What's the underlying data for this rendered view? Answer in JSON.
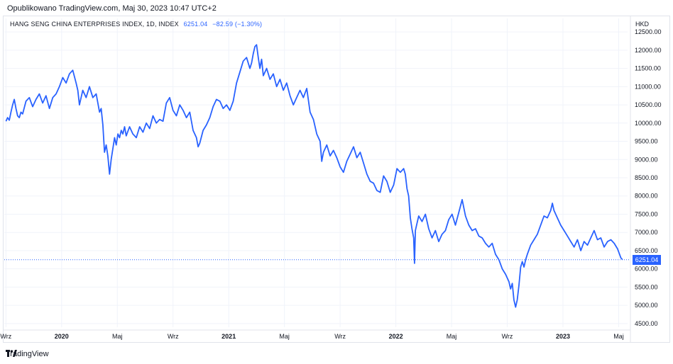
{
  "header": {
    "published": "Opublikowano TradingView.com, Maj 30, 2023 10:47 UTC+2"
  },
  "legend": {
    "symbol": "HANG SENG CHINA ENTERPRISES INDEX, 1D, INDEX",
    "last": "6251.04",
    "change": "−82.59 (−1.30%)"
  },
  "currency": "HKD",
  "price_tag": "6251.04",
  "footer": {
    "brand": "TradingView",
    "logo_icon": "tradingview-logo-icon"
  },
  "colors": {
    "line": "#2962ff",
    "grid": "#f0f3fa",
    "text": "#131722",
    "dotted": "#2962ff"
  },
  "chart_data": {
    "type": "line",
    "title": "",
    "y_ticks": [
      12500,
      12000,
      11500,
      11000,
      10500,
      10000,
      9500,
      9000,
      8500,
      8000,
      7500,
      7000,
      6500,
      6000,
      5500,
      5000,
      4500
    ],
    "y_tick_labels": [
      "12500.00",
      "12000.00",
      "11500.00",
      "11000.00",
      "10500.00",
      "10000.00",
      "9500.00",
      "9000.00",
      "8500.00",
      "8000.00",
      "7500.00",
      "7000.00",
      "6500.00",
      "6000.00",
      "5500.00",
      "5000.00",
      "4500.00"
    ],
    "ylim": [
      4400,
      12600
    ],
    "x_ticks": [
      {
        "label": "Wrz",
        "t": 0.0
      },
      {
        "label": "2020",
        "t": 0.3333
      },
      {
        "label": "Maj",
        "t": 0.6667
      },
      {
        "label": "Wrz",
        "t": 1.0
      },
      {
        "label": "2021",
        "t": 1.3333
      },
      {
        "label": "Maj",
        "t": 1.6667
      },
      {
        "label": "Wrz",
        "t": 2.0
      },
      {
        "label": "2022",
        "t": 2.3333
      },
      {
        "label": "Maj",
        "t": 2.6667
      },
      {
        "label": "Wrz",
        "t": 3.0
      },
      {
        "label": "2023",
        "t": 3.3333
      },
      {
        "label": "Maj",
        "t": 3.6667
      }
    ],
    "x_bold": [
      "2020",
      "2021",
      "2022",
      "2023"
    ],
    "xlim": [
      -0.01,
      3.72
    ],
    "last_value": 6251.04,
    "series": [
      {
        "points": [
          [
            0.0,
            10050
          ],
          [
            0.01,
            10150
          ],
          [
            0.02,
            10080
          ],
          [
            0.03,
            10300
          ],
          [
            0.04,
            10500
          ],
          [
            0.05,
            10650
          ],
          [
            0.06,
            10400
          ],
          [
            0.07,
            10200
          ],
          [
            0.08,
            10150
          ],
          [
            0.09,
            10300
          ],
          [
            0.1,
            10250
          ],
          [
            0.12,
            10600
          ],
          [
            0.14,
            10700
          ],
          [
            0.16,
            10450
          ],
          [
            0.18,
            10650
          ],
          [
            0.2,
            10800
          ],
          [
            0.22,
            10550
          ],
          [
            0.24,
            10750
          ],
          [
            0.26,
            10400
          ],
          [
            0.28,
            10700
          ],
          [
            0.3,
            10800
          ],
          [
            0.32,
            11000
          ],
          [
            0.34,
            11250
          ],
          [
            0.36,
            11100
          ],
          [
            0.38,
            11350
          ],
          [
            0.4,
            11450
          ],
          [
            0.42,
            11100
          ],
          [
            0.43,
            10900
          ],
          [
            0.44,
            10500
          ],
          [
            0.46,
            10900
          ],
          [
            0.48,
            10700
          ],
          [
            0.5,
            11000
          ],
          [
            0.52,
            10700
          ],
          [
            0.54,
            10800
          ],
          [
            0.56,
            10300
          ],
          [
            0.57,
            10400
          ],
          [
            0.58,
            9950
          ],
          [
            0.59,
            9200
          ],
          [
            0.6,
            9400
          ],
          [
            0.61,
            9100
          ],
          [
            0.62,
            8600
          ],
          [
            0.63,
            9000
          ],
          [
            0.64,
            9300
          ],
          [
            0.65,
            9600
          ],
          [
            0.66,
            9400
          ],
          [
            0.67,
            9700
          ],
          [
            0.68,
            9600
          ],
          [
            0.69,
            9800
          ],
          [
            0.7,
            9700
          ],
          [
            0.71,
            9900
          ],
          [
            0.72,
            9650
          ],
          [
            0.74,
            9900
          ],
          [
            0.76,
            9700
          ],
          [
            0.78,
            9600
          ],
          [
            0.8,
            9900
          ],
          [
            0.82,
            9750
          ],
          [
            0.84,
            10000
          ],
          [
            0.86,
            9850
          ],
          [
            0.88,
            10200
          ],
          [
            0.9,
            10000
          ],
          [
            0.92,
            10100
          ],
          [
            0.94,
            10050
          ],
          [
            0.96,
            10550
          ],
          [
            0.98,
            10700
          ],
          [
            1.0,
            10350
          ],
          [
            1.02,
            10200
          ],
          [
            1.04,
            10500
          ],
          [
            1.06,
            10350
          ],
          [
            1.08,
            10150
          ],
          [
            1.1,
            10300
          ],
          [
            1.12,
            9800
          ],
          [
            1.14,
            9600
          ],
          [
            1.15,
            9350
          ],
          [
            1.16,
            9450
          ],
          [
            1.18,
            9800
          ],
          [
            1.2,
            9950
          ],
          [
            1.22,
            10150
          ],
          [
            1.24,
            10450
          ],
          [
            1.26,
            10650
          ],
          [
            1.28,
            10600
          ],
          [
            1.3,
            10400
          ],
          [
            1.32,
            10500
          ],
          [
            1.34,
            10350
          ],
          [
            1.36,
            10600
          ],
          [
            1.38,
            11100
          ],
          [
            1.4,
            11400
          ],
          [
            1.42,
            11700
          ],
          [
            1.44,
            11800
          ],
          [
            1.46,
            11500
          ],
          [
            1.47,
            11650
          ],
          [
            1.48,
            11900
          ],
          [
            1.49,
            12100
          ],
          [
            1.5,
            12150
          ],
          [
            1.51,
            11800
          ],
          [
            1.52,
            11500
          ],
          [
            1.53,
            11750
          ],
          [
            1.54,
            11300
          ],
          [
            1.56,
            11500
          ],
          [
            1.58,
            11200
          ],
          [
            1.6,
            11350
          ],
          [
            1.62,
            11000
          ],
          [
            1.64,
            11200
          ],
          [
            1.66,
            10900
          ],
          [
            1.68,
            11100
          ],
          [
            1.7,
            10750
          ],
          [
            1.72,
            10500
          ],
          [
            1.74,
            10700
          ],
          [
            1.76,
            10900
          ],
          [
            1.78,
            10700
          ],
          [
            1.8,
            10950
          ],
          [
            1.82,
            10300
          ],
          [
            1.84,
            10100
          ],
          [
            1.86,
            9700
          ],
          [
            1.88,
            9500
          ],
          [
            1.89,
            8950
          ],
          [
            1.9,
            9200
          ],
          [
            1.92,
            9400
          ],
          [
            1.94,
            9100
          ],
          [
            1.96,
            9250
          ],
          [
            1.98,
            9050
          ],
          [
            2.0,
            8800
          ],
          [
            2.02,
            8650
          ],
          [
            2.04,
            8950
          ],
          [
            2.06,
            9150
          ],
          [
            2.08,
            9350
          ],
          [
            2.1,
            9050
          ],
          [
            2.12,
            9200
          ],
          [
            2.14,
            8900
          ],
          [
            2.16,
            8600
          ],
          [
            2.18,
            8400
          ],
          [
            2.2,
            8350
          ],
          [
            2.22,
            8150
          ],
          [
            2.24,
            8100
          ],
          [
            2.26,
            8550
          ],
          [
            2.28,
            8400
          ],
          [
            2.3,
            8100
          ],
          [
            2.32,
            8300
          ],
          [
            2.34,
            8750
          ],
          [
            2.36,
            8650
          ],
          [
            2.38,
            8750
          ],
          [
            2.39,
            8600
          ],
          [
            2.4,
            8200
          ],
          [
            2.41,
            8000
          ],
          [
            2.42,
            7400
          ],
          [
            2.43,
            7100
          ],
          [
            2.44,
            6850
          ],
          [
            2.445,
            6150
          ],
          [
            2.45,
            7050
          ],
          [
            2.46,
            7250
          ],
          [
            2.47,
            7450
          ],
          [
            2.49,
            7300
          ],
          [
            2.51,
            7500
          ],
          [
            2.53,
            7100
          ],
          [
            2.55,
            6850
          ],
          [
            2.57,
            7050
          ],
          [
            2.59,
            6750
          ],
          [
            2.61,
            6950
          ],
          [
            2.63,
            7050
          ],
          [
            2.65,
            7350
          ],
          [
            2.67,
            7500
          ],
          [
            2.69,
            7200
          ],
          [
            2.71,
            7550
          ],
          [
            2.73,
            7900
          ],
          [
            2.75,
            7450
          ],
          [
            2.77,
            7200
          ],
          [
            2.79,
            7050
          ],
          [
            2.81,
            7100
          ],
          [
            2.83,
            6900
          ],
          [
            2.85,
            6850
          ],
          [
            2.87,
            6700
          ],
          [
            2.89,
            6600
          ],
          [
            2.91,
            6700
          ],
          [
            2.93,
            6400
          ],
          [
            2.95,
            6250
          ],
          [
            2.97,
            6000
          ],
          [
            2.99,
            5850
          ],
          [
            3.01,
            5650
          ],
          [
            3.02,
            5450
          ],
          [
            3.03,
            5600
          ],
          [
            3.04,
            5150
          ],
          [
            3.05,
            4950
          ],
          [
            3.06,
            5150
          ],
          [
            3.07,
            5550
          ],
          [
            3.08,
            6050
          ],
          [
            3.09,
            6200
          ],
          [
            3.1,
            6050
          ],
          [
            3.11,
            6250
          ],
          [
            3.12,
            6400
          ],
          [
            3.14,
            6650
          ],
          [
            3.16,
            6800
          ],
          [
            3.18,
            6950
          ],
          [
            3.2,
            7200
          ],
          [
            3.22,
            7450
          ],
          [
            3.24,
            7400
          ],
          [
            3.26,
            7600
          ],
          [
            3.27,
            7800
          ],
          [
            3.28,
            7600
          ],
          [
            3.3,
            7400
          ],
          [
            3.32,
            7200
          ],
          [
            3.34,
            7050
          ],
          [
            3.36,
            6900
          ],
          [
            3.38,
            6750
          ],
          [
            3.4,
            6600
          ],
          [
            3.42,
            6800
          ],
          [
            3.44,
            6500
          ],
          [
            3.46,
            6750
          ],
          [
            3.48,
            6650
          ],
          [
            3.5,
            6850
          ],
          [
            3.52,
            7050
          ],
          [
            3.54,
            6800
          ],
          [
            3.56,
            6850
          ],
          [
            3.58,
            6600
          ],
          [
            3.6,
            6750
          ],
          [
            3.62,
            6800
          ],
          [
            3.64,
            6700
          ],
          [
            3.66,
            6550
          ],
          [
            3.68,
            6300
          ],
          [
            3.69,
            6251
          ]
        ]
      }
    ]
  }
}
